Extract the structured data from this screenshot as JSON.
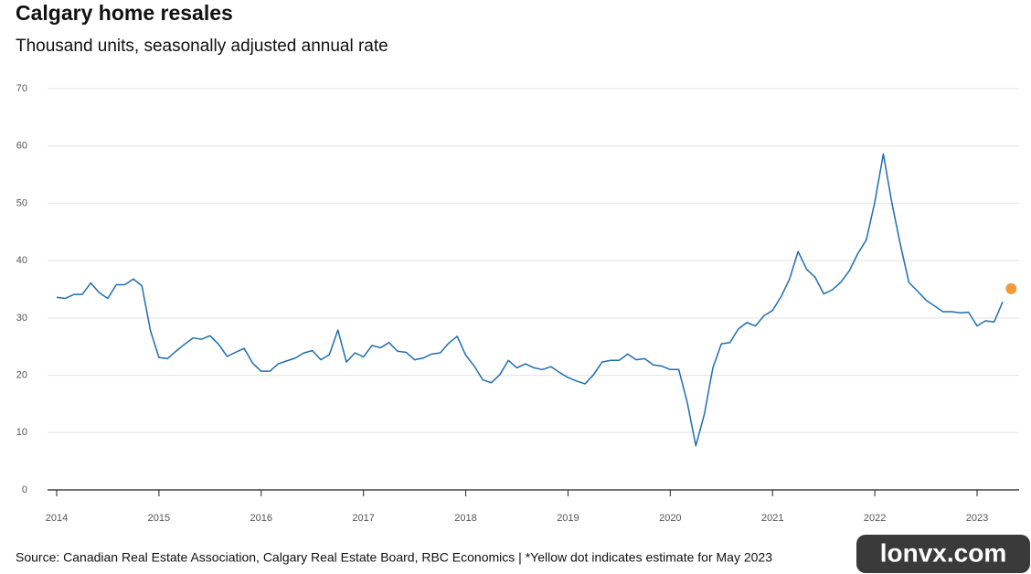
{
  "chart_data": {
    "type": "line",
    "title": "Calgary home resales",
    "subtitle": "Thousand units, seasonally adjusted annual rate",
    "source": "Source: Canadian Real Estate Association, Calgary Real Estate Board, RBC Economics | *Yellow dot indicates estimate for May 2023",
    "categories": [
      "2014",
      null,
      null,
      null,
      null,
      null,
      null,
      null,
      null,
      null,
      null,
      null,
      "2015",
      null,
      null,
      null,
      null,
      null,
      null,
      null,
      null,
      null,
      null,
      null,
      "2016",
      null,
      null,
      null,
      null,
      null,
      null,
      null,
      null,
      null,
      null,
      null,
      "2017",
      null,
      null,
      null,
      null,
      null,
      null,
      null,
      null,
      null,
      null,
      null,
      "2018",
      null,
      null,
      null,
      null,
      null,
      null,
      null,
      null,
      null,
      null,
      null,
      "2019",
      null,
      null,
      null,
      null,
      null,
      null,
      null,
      null,
      null,
      null,
      null,
      "2020",
      null,
      null,
      null,
      null,
      null,
      null,
      null,
      null,
      null,
      null,
      null,
      "2021",
      null,
      null,
      null,
      null,
      null,
      null,
      null,
      null,
      null,
      null,
      null,
      "2022",
      null,
      null,
      null,
      null,
      null,
      null,
      null,
      null,
      null,
      null,
      null,
      "2023",
      null,
      null,
      null,
      null
    ],
    "series": [
      {
        "style": "line",
        "color": "#1f6db1",
        "values": [
          33.6,
          33.4,
          34.1,
          34.1,
          36.1,
          34.4,
          33.4,
          35.8,
          35.8,
          36.8,
          35.6,
          27.8,
          23.1,
          22.9,
          24.2,
          25.4,
          26.5,
          26.3,
          26.9,
          25.4,
          23.3,
          24.0,
          24.7,
          22.1,
          20.7,
          20.7,
          22.0,
          22.5,
          23.0,
          23.9,
          24.3,
          22.7,
          23.6,
          27.9,
          22.3,
          23.9,
          23.2,
          25.2,
          24.8,
          25.7,
          24.2,
          24.0,
          22.7,
          23.0,
          23.7,
          23.9,
          25.6,
          26.8,
          23.5,
          21.6,
          19.2,
          18.7,
          20.1,
          22.6,
          21.3,
          22.0,
          21.3,
          21.0,
          21.5,
          20.5,
          19.6,
          19.0,
          18.5,
          20.1,
          22.3,
          22.6,
          22.6,
          23.7,
          22.7,
          22.9,
          21.8,
          21.6,
          21.0,
          21.0,
          15.2,
          7.7,
          13.2,
          21.3,
          25.5,
          25.7,
          28.1,
          29.2,
          28.6,
          30.4,
          31.3,
          33.7,
          36.8,
          41.6,
          38.5,
          37.1,
          34.2,
          34.9,
          36.2,
          38.2,
          41.2,
          43.6,
          50.2,
          58.6,
          50.1,
          42.8,
          36.2,
          34.7,
          33.1,
          32.1,
          31.1,
          31.1,
          30.9,
          31.0,
          28.6,
          29.5,
          29.3,
          32.8,
          null
        ]
      },
      {
        "style": "dot",
        "color": "#f39a38",
        "values": [
          null,
          null,
          null,
          null,
          null,
          null,
          null,
          null,
          null,
          null,
          null,
          null,
          null,
          null,
          null,
          null,
          null,
          null,
          null,
          null,
          null,
          null,
          null,
          null,
          null,
          null,
          null,
          null,
          null,
          null,
          null,
          null,
          null,
          null,
          null,
          null,
          null,
          null,
          null,
          null,
          null,
          null,
          null,
          null,
          null,
          null,
          null,
          null,
          null,
          null,
          null,
          null,
          null,
          null,
          null,
          null,
          null,
          null,
          null,
          null,
          null,
          null,
          null,
          null,
          null,
          null,
          null,
          null,
          null,
          null,
          null,
          null,
          null,
          null,
          null,
          null,
          null,
          null,
          null,
          null,
          null,
          null,
          null,
          null,
          null,
          null,
          null,
          null,
          null,
          null,
          null,
          null,
          null,
          null,
          null,
          null,
          null,
          null,
          null,
          null,
          null,
          null,
          null,
          null,
          null,
          null,
          null,
          null,
          null,
          null,
          null,
          null,
          35.1
        ]
      }
    ],
    "ylim": [
      0,
      70
    ],
    "yticks": [
      0,
      10,
      20,
      30,
      40,
      50,
      60,
      70
    ],
    "grid": true
  },
  "watermark": "lonvx.com"
}
